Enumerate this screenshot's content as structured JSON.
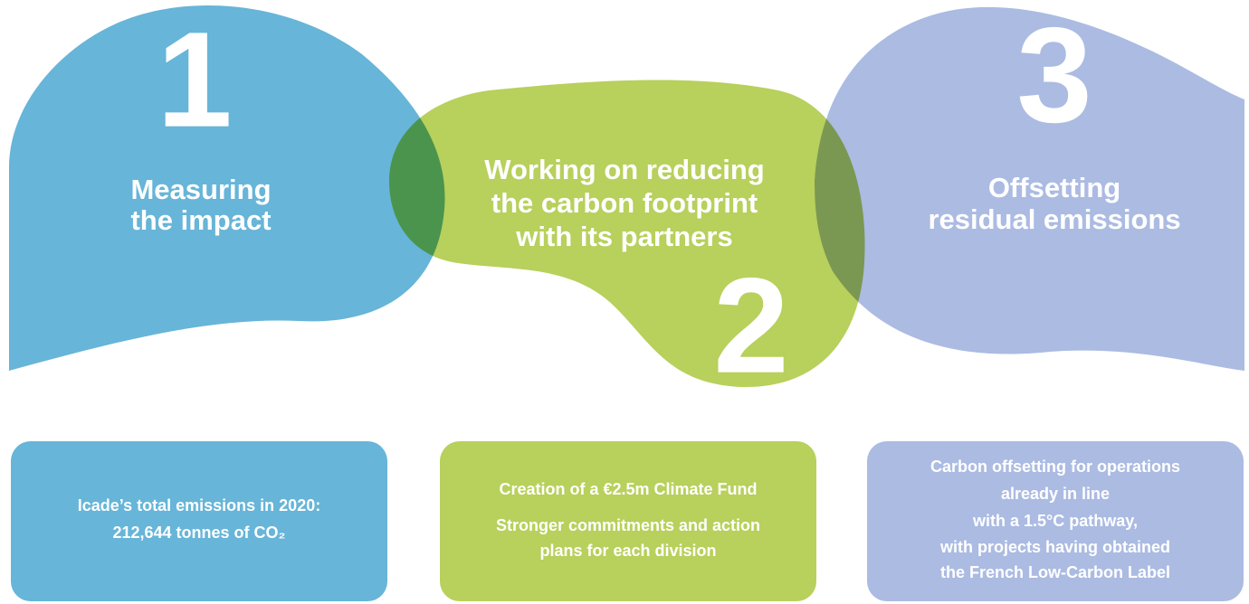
{
  "steps": [
    {
      "number": "1",
      "title": [
        "Measuring",
        "the impact"
      ],
      "box": [
        "Icade’s total emissions in 2020:",
        "212,644 tonnes of CO₂"
      ]
    },
    {
      "number": "2",
      "title": [
        "Working on reducing",
        "the carbon footprint",
        "with its partners"
      ],
      "box": [
        "Creation of a €2.5m Climate Fund",
        "Stronger commitments and action",
        "plans for each division"
      ]
    },
    {
      "number": "3",
      "title": [
        "Offsetting",
        "residual emissions"
      ],
      "box": [
        "Carbon offsetting for operations",
        "already in line",
        "with a 1.5°C pathway,",
        "with projects having obtained",
        "the French Low-Carbon Label"
      ]
    }
  ]
}
